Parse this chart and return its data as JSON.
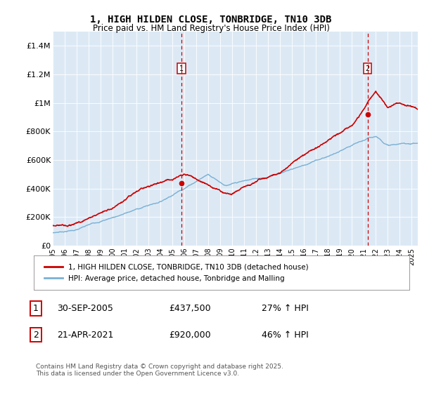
{
  "title": "1, HIGH HILDEN CLOSE, TONBRIDGE, TN10 3DB",
  "subtitle": "Price paid vs. HM Land Registry's House Price Index (HPI)",
  "background_color": "#dce9f5",
  "plot_bg_color": "#dce9f5",
  "line1_color": "#cc0000",
  "line2_color": "#7ab0d4",
  "vline_color": "#cc0000",
  "ylim": [
    0,
    1500000
  ],
  "yticks": [
    0,
    200000,
    400000,
    600000,
    800000,
    1000000,
    1200000,
    1400000
  ],
  "ytick_labels": [
    "£0",
    "£200K",
    "£400K",
    "£600K",
    "£800K",
    "£1M",
    "£1.2M",
    "£1.4M"
  ],
  "sale1_date_x": 2005.75,
  "sale1_price": 437500,
  "sale2_date_x": 2021.3,
  "sale2_price": 920000,
  "legend_line1": "1, HIGH HILDEN CLOSE, TONBRIDGE, TN10 3DB (detached house)",
  "legend_line2": "HPI: Average price, detached house, Tonbridge and Malling",
  "table_row1": [
    "1",
    "30-SEP-2005",
    "£437,500",
    "27% ↑ HPI"
  ],
  "table_row2": [
    "2",
    "21-APR-2021",
    "£920,000",
    "46% ↑ HPI"
  ],
  "footer": "Contains HM Land Registry data © Crown copyright and database right 2025.\nThis data is licensed under the Open Government Licence v3.0.",
  "xmin": 1995,
  "xmax": 2025.5
}
